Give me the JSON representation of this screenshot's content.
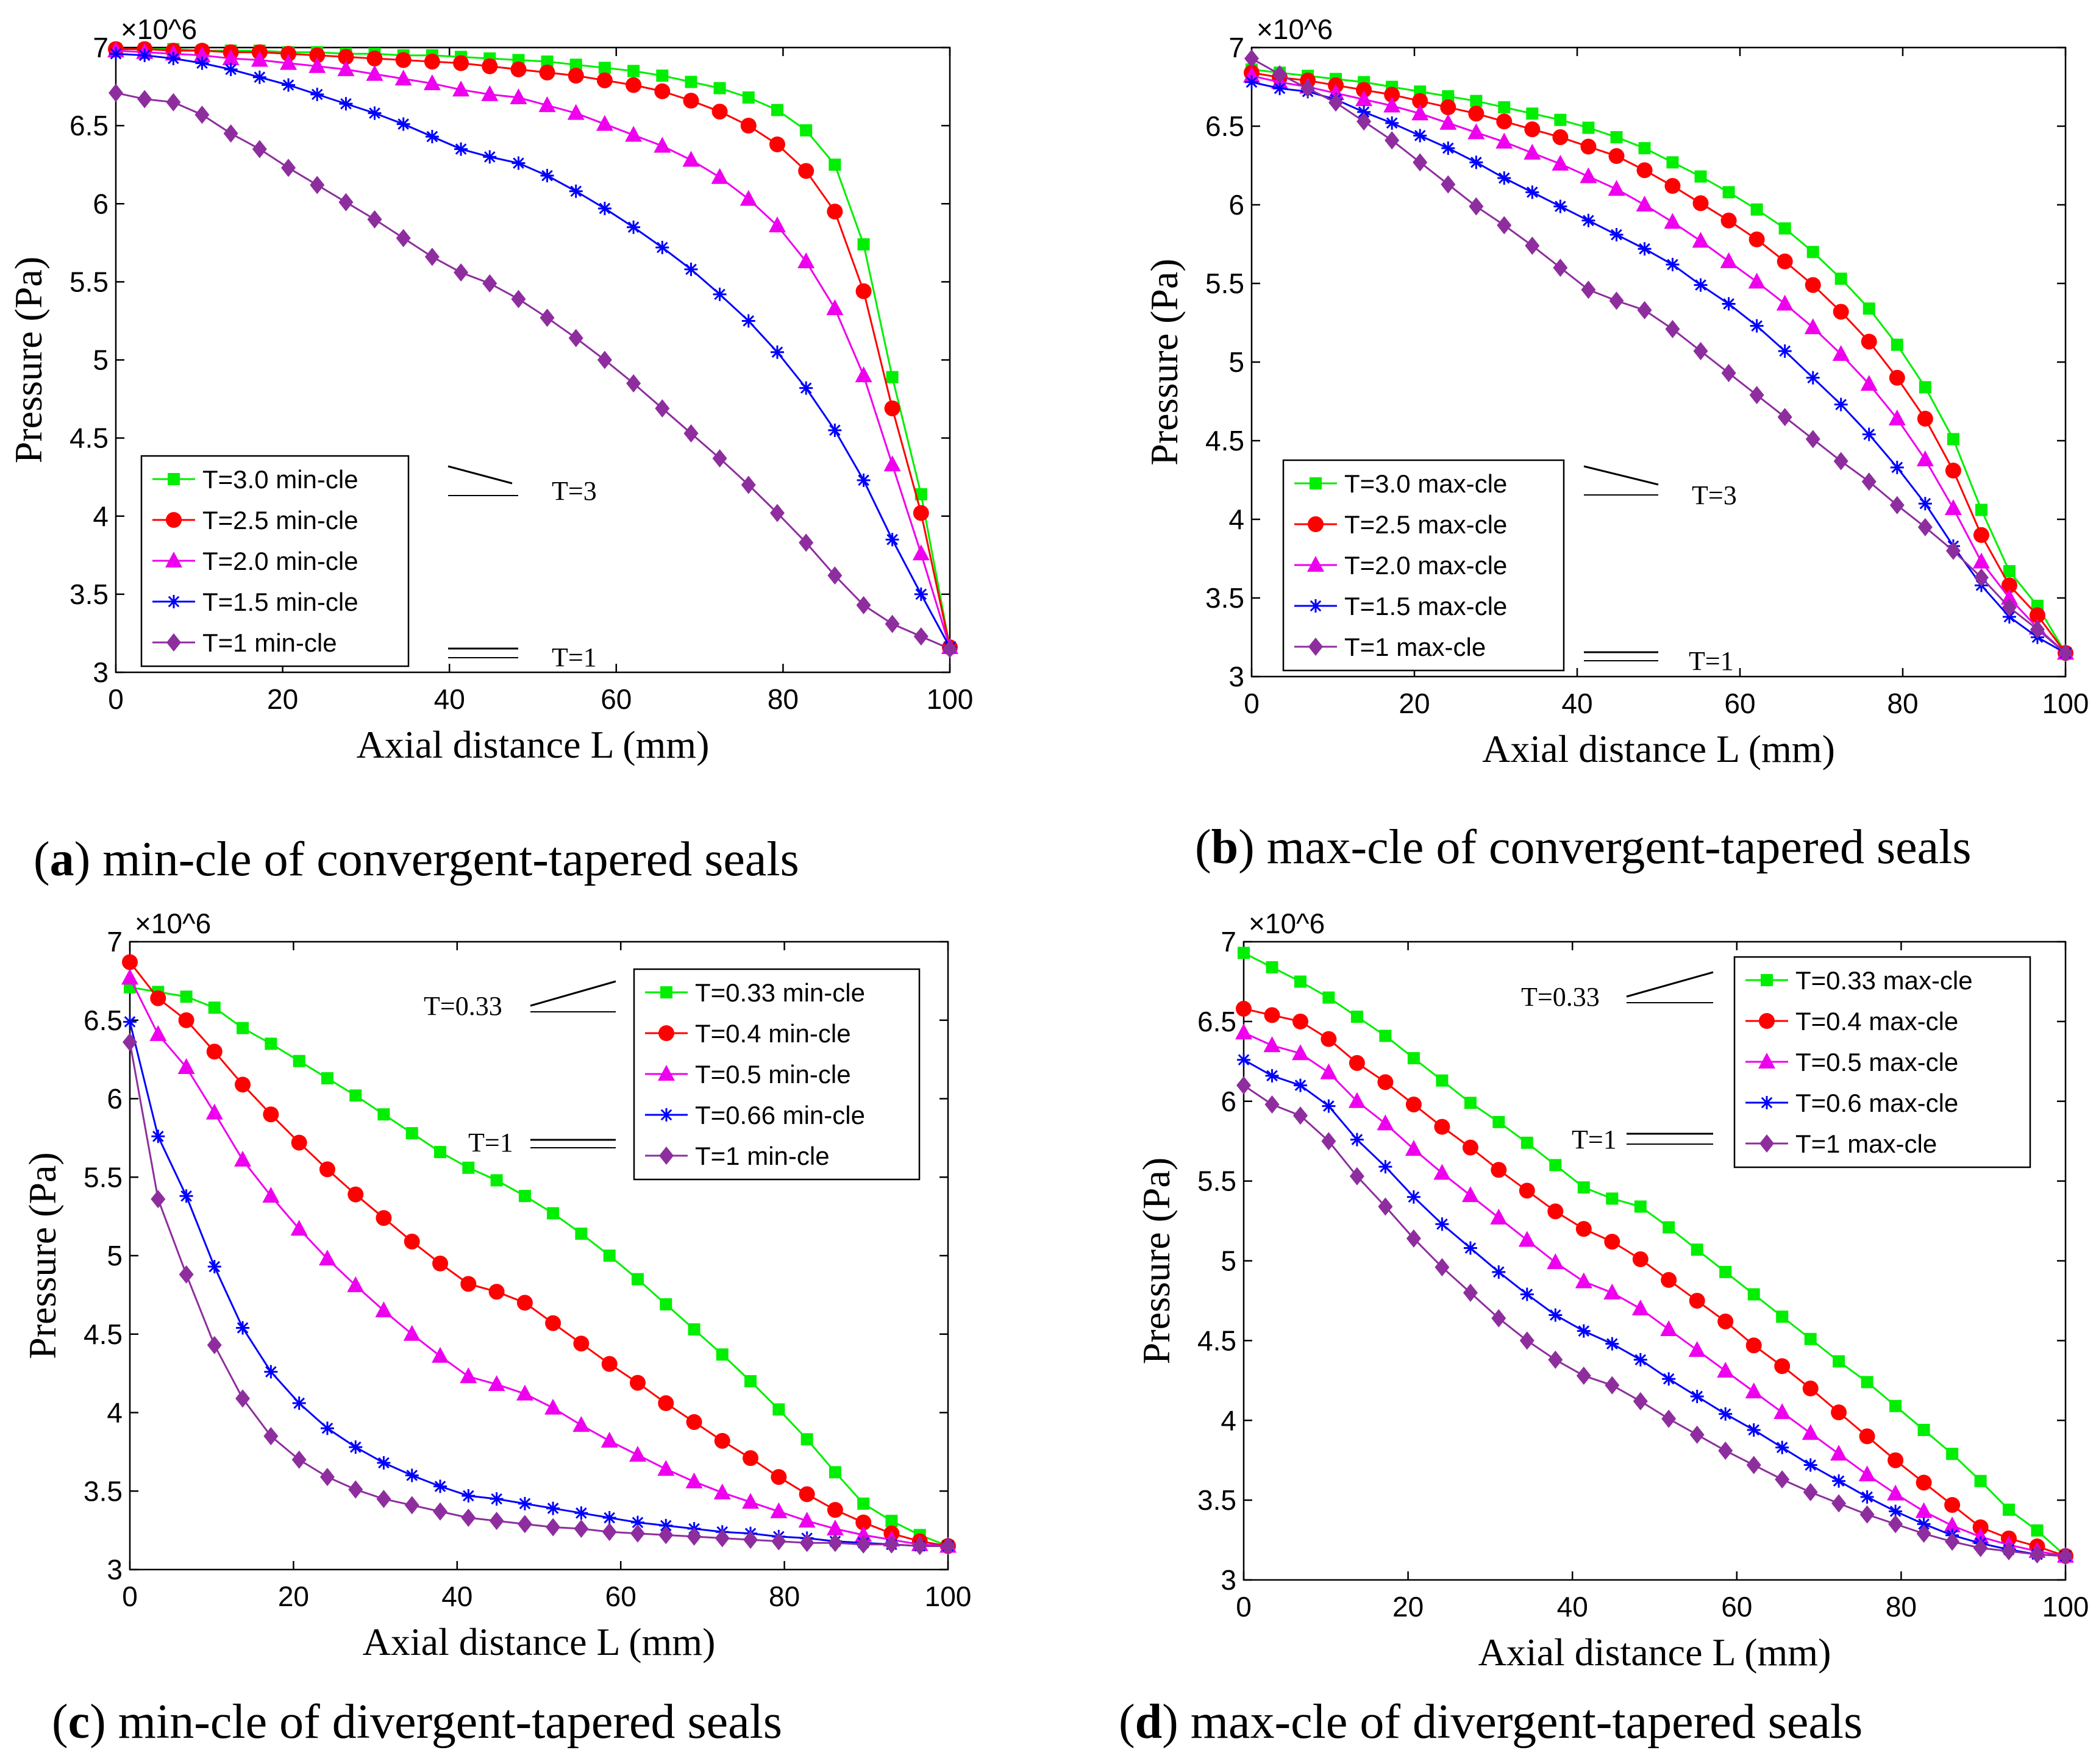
{
  "captions": [
    {
      "letter": "a",
      "text": "min-cle of convergent-tapered seals"
    },
    {
      "letter": "b",
      "text": "max-cle of convergent-tapered seals"
    },
    {
      "letter": "c",
      "text": "min-cle of divergent-tapered seals"
    },
    {
      "letter": "d",
      "text": "max-cle of divergent-tapered seals"
    }
  ],
  "chart_data": [
    {
      "type": "line",
      "panel": "a",
      "xlabel": "Axial distance L (mm)",
      "ylabel": "Pressure (Pa)",
      "yexp": "×10^6",
      "xlim": [
        0,
        100
      ],
      "ylim": [
        3,
        7
      ],
      "xticks": [
        0,
        20,
        40,
        60,
        80,
        100
      ],
      "yticks": [
        3,
        3.5,
        4,
        4.5,
        5,
        5.5,
        6,
        6.5,
        7
      ],
      "legend_position": "lower-left",
      "annotations": [
        "T=3",
        "T=1"
      ],
      "x": [
        0,
        3.45,
        6.9,
        10.34,
        13.79,
        17.24,
        20.69,
        24.14,
        27.59,
        31.03,
        34.48,
        37.93,
        41.38,
        44.83,
        48.28,
        51.72,
        55.17,
        58.62,
        62.07,
        65.52,
        68.97,
        72.41,
        75.86,
        79.31,
        82.76,
        86.21,
        89.66,
        93.1,
        96.55,
        100
      ],
      "series": [
        {
          "name": "T=3.0 min-cle",
          "color": "#00ee00",
          "marker": "square",
          "values": [
            6.99,
            6.99,
            6.99,
            6.98,
            6.98,
            6.98,
            6.97,
            6.97,
            6.96,
            6.96,
            6.95,
            6.95,
            6.94,
            6.93,
            6.92,
            6.91,
            6.89,
            6.87,
            6.85,
            6.82,
            6.78,
            6.74,
            6.68,
            6.6,
            6.47,
            6.25,
            5.74,
            4.89,
            4.14,
            3.16
          ]
        },
        {
          "name": "T=2.5 min-cle",
          "color": "#ff0000",
          "marker": "circle",
          "values": [
            6.99,
            6.99,
            6.98,
            6.98,
            6.97,
            6.97,
            6.96,
            6.95,
            6.94,
            6.93,
            6.92,
            6.91,
            6.9,
            6.88,
            6.86,
            6.84,
            6.82,
            6.79,
            6.76,
            6.72,
            6.66,
            6.59,
            6.5,
            6.38,
            6.21,
            5.95,
            5.44,
            4.69,
            4.02,
            3.16
          ]
        },
        {
          "name": "T=2.0 min-cle",
          "color": "#ee00ee",
          "marker": "triangle",
          "values": [
            6.98,
            6.97,
            6.96,
            6.95,
            6.93,
            6.92,
            6.9,
            6.88,
            6.86,
            6.83,
            6.8,
            6.77,
            6.73,
            6.7,
            6.68,
            6.63,
            6.58,
            6.51,
            6.44,
            6.37,
            6.28,
            6.17,
            6.03,
            5.86,
            5.63,
            5.33,
            4.9,
            4.33,
            3.76,
            3.16
          ]
        },
        {
          "name": "T=1.5 min-cle",
          "color": "#0000ff",
          "marker": "star",
          "values": [
            6.96,
            6.95,
            6.93,
            6.9,
            6.86,
            6.81,
            6.76,
            6.7,
            6.64,
            6.58,
            6.51,
            6.43,
            6.35,
            6.3,
            6.26,
            6.18,
            6.08,
            5.97,
            5.85,
            5.72,
            5.58,
            5.42,
            5.25,
            5.05,
            4.82,
            4.55,
            4.23,
            3.85,
            3.5,
            3.16
          ]
        },
        {
          "name": "T=1 min-cle",
          "color": "#8e2e9e",
          "marker": "diamond",
          "values": [
            6.71,
            6.67,
            6.65,
            6.57,
            6.45,
            6.35,
            6.23,
            6.12,
            6.01,
            5.9,
            5.78,
            5.66,
            5.56,
            5.49,
            5.39,
            5.27,
            5.14,
            5.0,
            4.85,
            4.69,
            4.53,
            4.37,
            4.2,
            4.02,
            3.83,
            3.62,
            3.43,
            3.31,
            3.23,
            3.15
          ]
        }
      ]
    },
    {
      "type": "line",
      "panel": "b",
      "xlabel": "Axial distance L (mm)",
      "ylabel": "Pressure (Pa)",
      "yexp": "×10^6",
      "xlim": [
        0,
        100
      ],
      "ylim": [
        3,
        7
      ],
      "xticks": [
        0,
        20,
        40,
        60,
        80,
        100
      ],
      "yticks": [
        3,
        3.5,
        4,
        4.5,
        5,
        5.5,
        6,
        6.5,
        7
      ],
      "legend_position": "lower-left",
      "annotations": [
        "T=3",
        "T=1"
      ],
      "x": [
        0,
        3.45,
        6.9,
        10.34,
        13.79,
        17.24,
        20.69,
        24.14,
        27.59,
        31.03,
        34.48,
        37.93,
        41.38,
        44.83,
        48.28,
        51.72,
        55.17,
        58.62,
        62.07,
        65.52,
        68.97,
        72.41,
        75.86,
        79.31,
        82.76,
        86.21,
        89.66,
        93.1,
        96.55,
        100
      ],
      "series": [
        {
          "name": "T=3.0 max-cle",
          "color": "#00ee00",
          "marker": "square",
          "values": [
            6.86,
            6.84,
            6.82,
            6.8,
            6.78,
            6.75,
            6.72,
            6.69,
            6.66,
            6.62,
            6.58,
            6.54,
            6.49,
            6.43,
            6.36,
            6.27,
            6.18,
            6.08,
            5.97,
            5.85,
            5.7,
            5.53,
            5.34,
            5.11,
            4.84,
            4.51,
            4.06,
            3.67,
            3.45,
            3.15
          ]
        },
        {
          "name": "T=2.5 max-cle",
          "color": "#ff0000",
          "marker": "circle",
          "values": [
            6.84,
            6.81,
            6.79,
            6.76,
            6.73,
            6.7,
            6.66,
            6.62,
            6.58,
            6.53,
            6.48,
            6.43,
            6.37,
            6.31,
            6.22,
            6.12,
            6.01,
            5.9,
            5.78,
            5.64,
            5.49,
            5.32,
            5.13,
            4.9,
            4.64,
            4.31,
            3.9,
            3.58,
            3.39,
            3.15
          ]
        },
        {
          "name": "T=2.0 max-cle",
          "color": "#ee00ee",
          "marker": "triangle",
          "values": [
            6.82,
            6.78,
            6.75,
            6.71,
            6.67,
            6.63,
            6.58,
            6.52,
            6.46,
            6.4,
            6.33,
            6.26,
            6.18,
            6.1,
            6.0,
            5.89,
            5.77,
            5.64,
            5.51,
            5.37,
            5.22,
            5.05,
            4.86,
            4.64,
            4.38,
            4.07,
            3.73,
            3.5,
            3.31,
            3.15
          ]
        },
        {
          "name": "T=1.5 max-cle",
          "color": "#0000ff",
          "marker": "star",
          "values": [
            6.78,
            6.74,
            6.72,
            6.67,
            6.59,
            6.52,
            6.44,
            6.36,
            6.27,
            6.17,
            6.08,
            5.99,
            5.9,
            5.81,
            5.72,
            5.62,
            5.49,
            5.37,
            5.23,
            5.07,
            4.9,
            4.73,
            4.54,
            4.33,
            4.1,
            3.83,
            3.58,
            3.38,
            3.25,
            3.15
          ]
        },
        {
          "name": "T=1 max-cle",
          "color": "#8e2e9e",
          "marker": "diamond",
          "values": [
            6.93,
            6.83,
            6.74,
            6.65,
            6.53,
            6.41,
            6.27,
            6.13,
            5.99,
            5.87,
            5.74,
            5.6,
            5.46,
            5.39,
            5.33,
            5.21,
            5.07,
            4.93,
            4.79,
            4.65,
            4.51,
            4.37,
            4.24,
            4.09,
            3.95,
            3.8,
            3.63,
            3.44,
            3.3,
            3.15
          ]
        }
      ]
    },
    {
      "type": "line",
      "panel": "c",
      "xlabel": "Axial distance L (mm)",
      "ylabel": "Pressure (Pa)",
      "yexp": "×10^6",
      "xlim": [
        0,
        100
      ],
      "ylim": [
        3,
        7
      ],
      "xticks": [
        0,
        20,
        40,
        60,
        80,
        100
      ],
      "yticks": [
        3,
        3.5,
        4,
        4.5,
        5,
        5.5,
        6,
        6.5,
        7
      ],
      "legend_position": "top-right",
      "annotations": [
        "T=0.33",
        "T=1"
      ],
      "x": [
        0,
        3.45,
        6.9,
        10.34,
        13.79,
        17.24,
        20.69,
        24.14,
        27.59,
        31.03,
        34.48,
        37.93,
        41.38,
        44.83,
        48.28,
        51.72,
        55.17,
        58.62,
        62.07,
        65.52,
        68.97,
        72.41,
        75.86,
        79.31,
        82.76,
        86.21,
        89.66,
        93.1,
        96.55,
        100
      ],
      "series": [
        {
          "name": "T=0.33 min-cle",
          "color": "#00ee00",
          "marker": "square",
          "values": [
            6.71,
            6.68,
            6.65,
            6.58,
            6.45,
            6.35,
            6.24,
            6.13,
            6.02,
            5.9,
            5.78,
            5.66,
            5.56,
            5.48,
            5.38,
            5.27,
            5.14,
            5.0,
            4.85,
            4.69,
            4.53,
            4.37,
            4.2,
            4.02,
            3.83,
            3.62,
            3.42,
            3.31,
            3.22,
            3.15
          ]
        },
        {
          "name": "T=0.4 min-cle",
          "color": "#ff0000",
          "marker": "circle",
          "values": [
            6.87,
            6.64,
            6.5,
            6.3,
            6.09,
            5.9,
            5.72,
            5.55,
            5.39,
            5.24,
            5.09,
            4.95,
            4.82,
            4.77,
            4.7,
            4.57,
            4.44,
            4.31,
            4.19,
            4.06,
            3.94,
            3.82,
            3.71,
            3.59,
            3.48,
            3.38,
            3.3,
            3.23,
            3.18,
            3.15
          ]
        },
        {
          "name": "T=0.5 min-cle",
          "color": "#ee00ee",
          "marker": "triangle",
          "values": [
            6.77,
            6.41,
            6.2,
            5.91,
            5.61,
            5.38,
            5.17,
            4.98,
            4.81,
            4.65,
            4.5,
            4.36,
            4.23,
            4.18,
            4.12,
            4.03,
            3.92,
            3.82,
            3.73,
            3.64,
            3.56,
            3.49,
            3.43,
            3.37,
            3.31,
            3.26,
            3.22,
            3.19,
            3.16,
            3.15
          ]
        },
        {
          "name": "T=0.66 min-cle",
          "color": "#0000ff",
          "marker": "star",
          "values": [
            6.49,
            5.76,
            5.38,
            4.93,
            4.54,
            4.26,
            4.06,
            3.9,
            3.78,
            3.68,
            3.6,
            3.53,
            3.47,
            3.45,
            3.42,
            3.39,
            3.36,
            3.33,
            3.3,
            3.28,
            3.26,
            3.24,
            3.23,
            3.21,
            3.2,
            3.18,
            3.17,
            3.16,
            3.15,
            3.15
          ]
        },
        {
          "name": "T=1 min-cle",
          "color": "#8e2e9e",
          "marker": "diamond",
          "values": [
            6.36,
            5.36,
            4.88,
            4.43,
            4.09,
            3.85,
            3.7,
            3.59,
            3.51,
            3.45,
            3.41,
            3.37,
            3.33,
            3.31,
            3.29,
            3.27,
            3.26,
            3.24,
            3.23,
            3.22,
            3.21,
            3.2,
            3.19,
            3.18,
            3.17,
            3.17,
            3.16,
            3.16,
            3.15,
            3.15
          ]
        }
      ]
    },
    {
      "type": "line",
      "panel": "d",
      "xlabel": "Axial distance L (mm)",
      "ylabel": "Pressure (Pa)",
      "yexp": "×10^6",
      "xlim": [
        0,
        100
      ],
      "ylim": [
        3,
        7
      ],
      "xticks": [
        0,
        20,
        40,
        60,
        80,
        100
      ],
      "yticks": [
        3,
        3.5,
        4,
        4.5,
        5,
        5.5,
        6,
        6.5,
        7
      ],
      "legend_position": "top-right",
      "annotations": [
        "T=0.33",
        "T=1"
      ],
      "x": [
        0,
        3.45,
        6.9,
        10.34,
        13.79,
        17.24,
        20.69,
        24.14,
        27.59,
        31.03,
        34.48,
        37.93,
        41.38,
        44.83,
        48.28,
        51.72,
        55.17,
        58.62,
        62.07,
        65.52,
        68.97,
        72.41,
        75.86,
        79.31,
        82.76,
        86.21,
        89.66,
        93.1,
        96.55,
        100
      ],
      "series": [
        {
          "name": "T=0.33 max-cle",
          "color": "#00ee00",
          "marker": "square",
          "values": [
            6.93,
            6.84,
            6.75,
            6.65,
            6.53,
            6.41,
            6.27,
            6.13,
            5.99,
            5.87,
            5.74,
            5.6,
            5.46,
            5.39,
            5.34,
            5.21,
            5.07,
            4.93,
            4.79,
            4.65,
            4.51,
            4.37,
            4.24,
            4.09,
            3.94,
            3.79,
            3.62,
            3.44,
            3.31,
            3.15
          ]
        },
        {
          "name": "T=0.4 max-cle",
          "color": "#ff0000",
          "marker": "circle",
          "values": [
            6.58,
            6.54,
            6.5,
            6.39,
            6.24,
            6.12,
            5.98,
            5.84,
            5.71,
            5.57,
            5.44,
            5.31,
            5.2,
            5.12,
            5.01,
            4.88,
            4.75,
            4.62,
            4.47,
            4.34,
            4.2,
            4.05,
            3.9,
            3.75,
            3.61,
            3.47,
            3.33,
            3.26,
            3.21,
            3.15
          ]
        },
        {
          "name": "T=0.5 max-cle",
          "color": "#ee00ee",
          "marker": "triangle",
          "values": [
            6.43,
            6.35,
            6.3,
            6.18,
            6.0,
            5.86,
            5.7,
            5.55,
            5.41,
            5.27,
            5.13,
            4.99,
            4.87,
            4.8,
            4.7,
            4.57,
            4.44,
            4.31,
            4.18,
            4.05,
            3.92,
            3.79,
            3.66,
            3.54,
            3.43,
            3.34,
            3.27,
            3.22,
            3.18,
            3.15
          ]
        },
        {
          "name": "T=0.6 max-cle",
          "color": "#0000ff",
          "marker": "star",
          "values": [
            6.26,
            6.16,
            6.1,
            5.97,
            5.76,
            5.59,
            5.4,
            5.23,
            5.08,
            4.93,
            4.79,
            4.66,
            4.56,
            4.48,
            4.38,
            4.26,
            4.15,
            4.04,
            3.94,
            3.83,
            3.72,
            3.62,
            3.52,
            3.43,
            3.35,
            3.28,
            3.23,
            3.19,
            3.16,
            3.15
          ]
        },
        {
          "name": "T=1 max-cle",
          "color": "#8e2e9e",
          "marker": "diamond",
          "values": [
            6.1,
            5.98,
            5.91,
            5.75,
            5.53,
            5.34,
            5.14,
            4.96,
            4.8,
            4.64,
            4.5,
            4.38,
            4.28,
            4.22,
            4.12,
            4.01,
            3.91,
            3.81,
            3.72,
            3.63,
            3.55,
            3.48,
            3.41,
            3.35,
            3.29,
            3.24,
            3.2,
            3.18,
            3.16,
            3.15
          ]
        }
      ]
    }
  ]
}
